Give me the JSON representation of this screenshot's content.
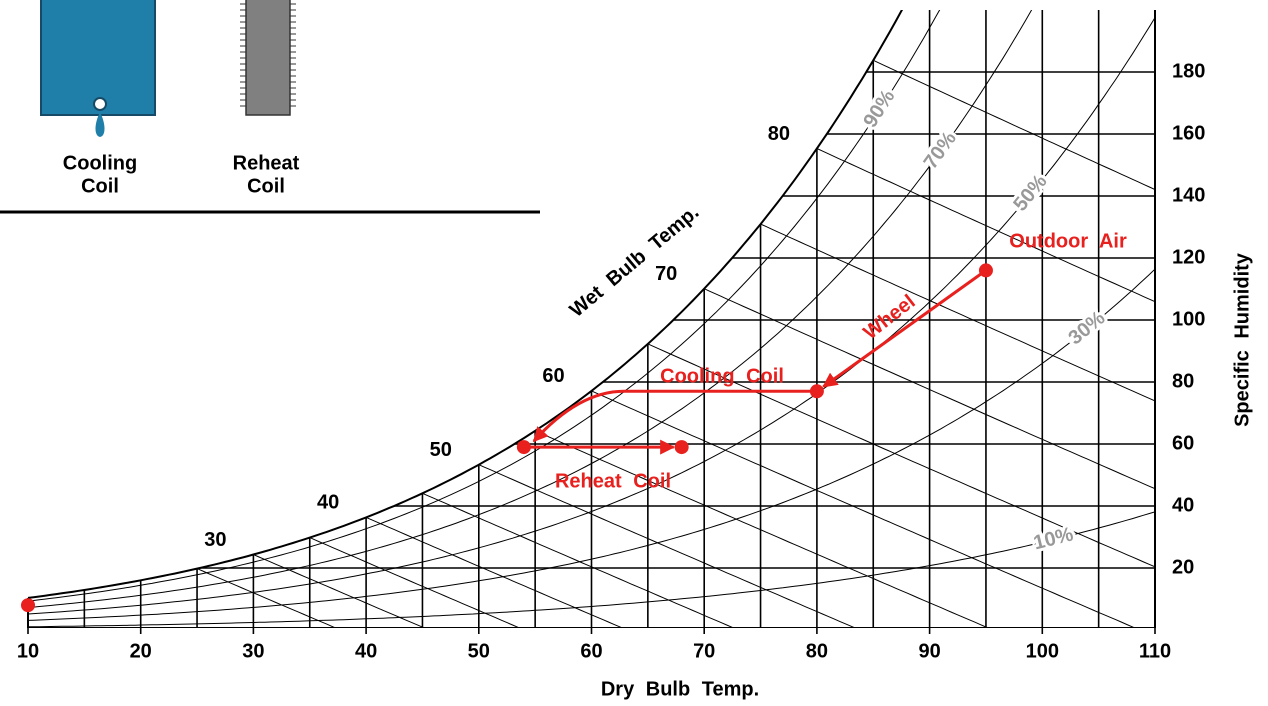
{
  "inset": {
    "labels": [
      [
        "Cooling",
        "Coil"
      ],
      [
        "Reheat",
        "Coil"
      ]
    ]
  },
  "chart_data": {
    "type": "psychrometric",
    "x_label": "Dry Bulb Temp.",
    "y_label": "Specific Humidity",
    "wet_bulb_label": "Wet Bulb Temp.",
    "xlim": [
      10,
      110
    ],
    "ylim": [
      0,
      200
    ],
    "xticks": [
      10,
      20,
      30,
      40,
      50,
      60,
      70,
      80,
      90,
      100,
      110
    ],
    "xgrid": [
      15,
      20,
      25,
      30,
      35,
      40,
      45,
      50,
      55,
      60,
      65,
      70,
      75,
      80,
      85,
      90,
      95,
      100,
      105
    ],
    "yticks": [
      20,
      40,
      60,
      80,
      100,
      120,
      140,
      160,
      180
    ],
    "wet_bulb_lines": [
      25,
      30,
      35,
      40,
      45,
      50,
      55,
      60,
      65,
      70,
      75,
      80,
      85
    ],
    "wet_bulb_ticks": [
      30,
      40,
      50,
      60,
      70,
      80
    ],
    "rh_lines": [
      {
        "value": 10,
        "label": "10%"
      },
      {
        "value": 30,
        "label": "30%"
      },
      {
        "value": 50,
        "label": "50%"
      },
      {
        "value": 70,
        "label": "70%"
      },
      {
        "value": 90,
        "label": "90%"
      }
    ],
    "rh_color": "#999999",
    "line_color": "#000000",
    "process": {
      "color": "#e8201e",
      "x": [
        95,
        80,
        54,
        68,
        10
      ],
      "y": [
        116,
        77,
        59,
        59,
        8
      ]
    },
    "annotations": [
      "Outdoor Air",
      "Wheel",
      "Cooling Coil",
      "Reheat Coil"
    ]
  }
}
